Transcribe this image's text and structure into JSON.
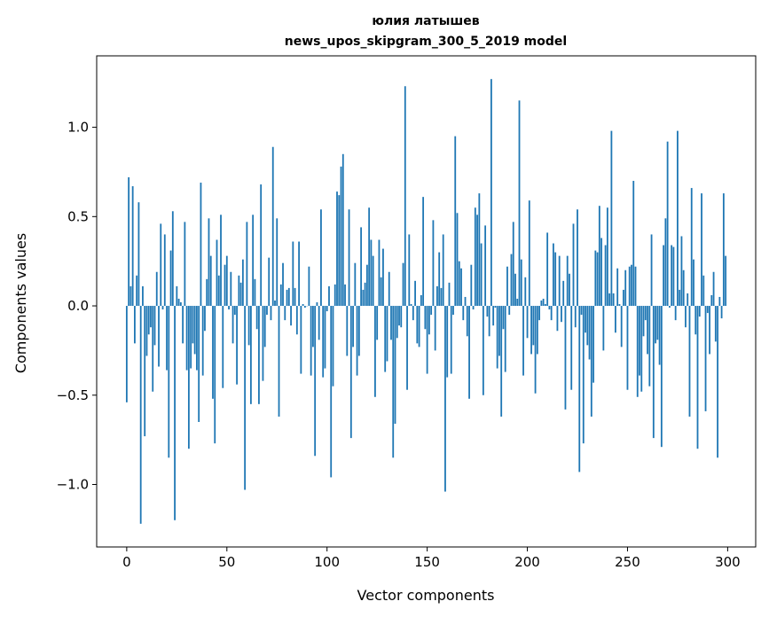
{
  "chart_data": {
    "type": "bar",
    "title": "юлия латышев",
    "subtitle": "news_upos_skipgram_300_5_2019 model",
    "xlabel": "Vector components",
    "ylabel": "Components values",
    "xlim": [
      -15,
      314
    ],
    "ylim": [
      -1.35,
      1.4
    ],
    "xticks": [
      0,
      50,
      100,
      150,
      200,
      250,
      300
    ],
    "xtick_labels": [
      "0",
      "50",
      "100",
      "150",
      "200",
      "250",
      "300"
    ],
    "yticks": [
      -1.0,
      -0.5,
      0.0,
      0.5,
      1.0
    ],
    "ytick_labels": [
      "−1.0",
      "−0.5",
      "0.0",
      "0.5",
      "1.0"
    ],
    "grid": false,
    "bar_color": "#1f77b4",
    "values": [
      -0.54,
      0.72,
      0.11,
      0.67,
      -0.21,
      0.17,
      0.58,
      -1.22,
      0.11,
      -0.73,
      -0.28,
      -0.16,
      -0.12,
      -0.48,
      -0.22,
      0.19,
      -0.34,
      0.46,
      -0.02,
      0.4,
      -0.36,
      -0.85,
      0.31,
      0.53,
      -1.2,
      0.11,
      0.04,
      0.02,
      -0.21,
      0.47,
      -0.36,
      -0.8,
      -0.35,
      -0.21,
      -0.27,
      -0.36,
      -0.65,
      0.69,
      -0.39,
      -0.14,
      0.15,
      0.49,
      0.28,
      -0.52,
      -0.77,
      0.37,
      0.17,
      0.51,
      -0.46,
      0.23,
      0.28,
      -0.02,
      0.19,
      -0.21,
      -0.05,
      -0.44,
      0.17,
      0.13,
      0.26,
      -1.03,
      0.47,
      -0.22,
      -0.55,
      0.51,
      0.15,
      -0.13,
      -0.55,
      0.68,
      -0.42,
      -0.23,
      -0.05,
      0.27,
      -0.08,
      0.89,
      0.03,
      0.49,
      -0.62,
      0.12,
      0.24,
      -0.08,
      0.09,
      0.1,
      -0.11,
      0.36,
      0.1,
      -0.16,
      0.36,
      -0.38,
      0.01,
      -0.01,
      0.0,
      0.22,
      -0.39,
      -0.23,
      -0.84,
      0.02,
      -0.19,
      0.54,
      -0.4,
      -0.35,
      -0.03,
      0.11,
      -0.96,
      -0.45,
      0.12,
      0.64,
      0.62,
      0.78,
      0.85,
      0.12,
      -0.28,
      0.54,
      -0.74,
      -0.23,
      0.24,
      -0.39,
      -0.28,
      0.44,
      0.09,
      0.13,
      0.23,
      0.55,
      0.37,
      0.28,
      -0.51,
      -0.19,
      0.37,
      0.16,
      0.32,
      -0.37,
      -0.31,
      0.19,
      -0.19,
      -0.85,
      -0.66,
      -0.18,
      -0.11,
      -0.12,
      0.24,
      1.23,
      -0.47,
      0.4,
      0.01,
      -0.08,
      0.14,
      -0.21,
      -0.23,
      0.06,
      0.61,
      -0.13,
      -0.38,
      -0.16,
      -0.05,
      0.48,
      -0.25,
      0.11,
      0.3,
      0.1,
      0.4,
      -1.04,
      -0.4,
      0.13,
      -0.38,
      -0.05,
      0.95,
      0.52,
      0.25,
      0.21,
      -0.08,
      0.05,
      -0.17,
      -0.52,
      0.23,
      -0.02,
      0.55,
      0.51,
      0.63,
      0.35,
      -0.5,
      0.45,
      -0.06,
      -0.17,
      1.27,
      -0.11,
      -0.01,
      -0.35,
      -0.28,
      -0.62,
      -0.13,
      -0.37,
      0.22,
      -0.05,
      0.29,
      0.47,
      0.18,
      0.04,
      1.15,
      0.26,
      -0.39,
      0.16,
      -0.18,
      0.59,
      -0.27,
      -0.22,
      -0.49,
      -0.27,
      -0.08,
      0.03,
      0.04,
      0.01,
      0.41,
      -0.02,
      -0.08,
      0.35,
      0.3,
      -0.14,
      0.28,
      -0.09,
      0.14,
      -0.58,
      0.28,
      0.18,
      -0.47,
      0.46,
      -0.12,
      0.54,
      -0.93,
      -0.05,
      -0.77,
      -0.15,
      -0.22,
      -0.3,
      -0.62,
      -0.43,
      0.31,
      0.3,
      0.56,
      0.38,
      -0.25,
      0.34,
      0.55,
      0.07,
      0.98,
      0.07,
      -0.15,
      0.21,
      0.01,
      -0.23,
      0.09,
      0.2,
      -0.47,
      0.22,
      0.23,
      0.7,
      0.22,
      -0.51,
      -0.39,
      -0.48,
      -0.17,
      -0.08,
      -0.27,
      -0.45,
      0.4,
      -0.74,
      -0.21,
      -0.19,
      -0.33,
      -0.79,
      0.34,
      0.49,
      0.92,
      -0.01,
      0.34,
      0.33,
      -0.08,
      0.98,
      0.09,
      0.39,
      0.2,
      -0.12,
      0.07,
      -0.62,
      0.66,
      0.26,
      -0.16,
      -0.8,
      -0.06,
      0.63,
      0.17,
      -0.59,
      -0.04,
      -0.27,
      0.06,
      0.19,
      -0.2,
      -0.85,
      0.05,
      -0.07,
      0.63,
      0.28
    ]
  }
}
